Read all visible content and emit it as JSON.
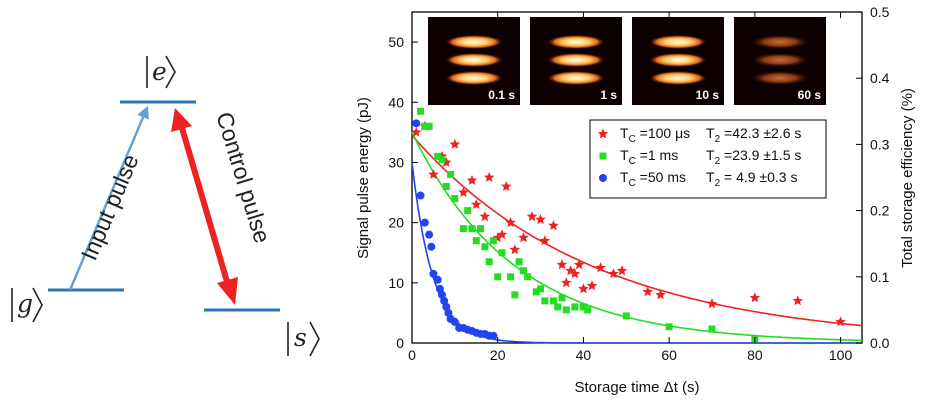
{
  "level_diagram": {
    "state_e": "e",
    "state_g": "g",
    "state_s": "s",
    "input_label": "Input pulse",
    "control_label": "Control pulse",
    "colors": {
      "level": "#2e75b6",
      "input": "#6a9fd0",
      "control": "#ee2222"
    }
  },
  "chart_data": {
    "type": "scatter",
    "xlabel": "Storage time Δt (s)",
    "ylabel": "Signal pulse energy (pJ)",
    "y2label": "Total storage efficiency (%)",
    "xlim": [
      0,
      105
    ],
    "ylim": [
      0,
      55
    ],
    "y2lim": [
      0,
      0.5
    ],
    "x_ticks": [
      "0",
      "20",
      "40",
      "60",
      "80",
      "100"
    ],
    "y_ticks": [
      "0",
      "10",
      "20",
      "30",
      "40",
      "50"
    ],
    "y2_ticks": [
      "0.0",
      "0.1",
      "0.2",
      "0.3",
      "0.4",
      "0.5"
    ],
    "grid": false,
    "legend_position": "right",
    "insets": [
      "0.1 s",
      "1 s",
      "10 s",
      "60 s"
    ],
    "series": [
      {
        "marker": "star",
        "color": "#ee2222",
        "legend_tc": "T",
        "legend_tc_sub": "C",
        "legend_tc_val": "=100 μs",
        "legend_t2": "T",
        "legend_t2_sub": "2",
        "legend_t2_val": "=42.3 ±2.6 s",
        "fit": {
          "amplitude": 34.5,
          "tau": 42.3
        },
        "points": [
          [
            1,
            35
          ],
          [
            3,
            36
          ],
          [
            5,
            28
          ],
          [
            7,
            31
          ],
          [
            8,
            30
          ],
          [
            10,
            33
          ],
          [
            12,
            25
          ],
          [
            14,
            27
          ],
          [
            15,
            23
          ],
          [
            17,
            21
          ],
          [
            18,
            27.5
          ],
          [
            20,
            17.5
          ],
          [
            21,
            18
          ],
          [
            22,
            26
          ],
          [
            23,
            20
          ],
          [
            24,
            15.5
          ],
          [
            26,
            17.5
          ],
          [
            28,
            21
          ],
          [
            30,
            20.5
          ],
          [
            31,
            17
          ],
          [
            33,
            19.5
          ],
          [
            35,
            13
          ],
          [
            36,
            10
          ],
          [
            37,
            12
          ],
          [
            38,
            11.5
          ],
          [
            39,
            13
          ],
          [
            40,
            9
          ],
          [
            42,
            9.5
          ],
          [
            44,
            12.5
          ],
          [
            47,
            11.5
          ],
          [
            49,
            12
          ],
          [
            55,
            8.5
          ],
          [
            58,
            8
          ],
          [
            70,
            6.5
          ],
          [
            80,
            7.5
          ],
          [
            90,
            7
          ],
          [
            100,
            3.5
          ]
        ]
      },
      {
        "marker": "square",
        "color": "#22dd22",
        "legend_tc": "T",
        "legend_tc_sub": "C",
        "legend_tc_val": "=1 ms",
        "legend_t2": "T",
        "legend_t2_sub": "2",
        "legend_t2_val": "=23.9 ±1.5 s",
        "fit": {
          "amplitude": 35,
          "tau": 23.9
        },
        "points": [
          [
            2,
            38.5
          ],
          [
            3,
            36
          ],
          [
            4,
            36
          ],
          [
            6,
            31
          ],
          [
            7,
            30.5
          ],
          [
            8,
            26
          ],
          [
            9,
            28
          ],
          [
            10,
            24
          ],
          [
            12,
            19
          ],
          [
            13,
            22
          ],
          [
            14,
            19
          ],
          [
            15,
            17
          ],
          [
            16,
            19
          ],
          [
            17,
            16
          ],
          [
            18,
            13.5
          ],
          [
            19,
            17
          ],
          [
            20,
            11
          ],
          [
            21,
            15
          ],
          [
            23,
            11
          ],
          [
            24,
            8
          ],
          [
            25,
            13.5
          ],
          [
            26,
            12
          ],
          [
            27,
            11
          ],
          [
            29,
            8.5
          ],
          [
            30,
            9
          ],
          [
            31,
            7
          ],
          [
            33,
            7
          ],
          [
            34,
            6
          ],
          [
            35,
            7.5
          ],
          [
            36,
            5.5
          ],
          [
            38,
            6
          ],
          [
            40,
            6
          ],
          [
            41,
            5.5
          ],
          [
            50,
            4.5
          ],
          [
            60,
            2.7
          ],
          [
            70,
            2.3
          ],
          [
            80,
            0.7
          ]
        ]
      },
      {
        "marker": "circle",
        "color": "#2244ee",
        "legend_tc": "T",
        "legend_tc_sub": "C",
        "legend_tc_val": "=50 ms",
        "legend_t2": "T",
        "legend_t2_sub": "2",
        "legend_t2_val": "=  4.9 ±0.3 s",
        "fit": {
          "amplitude": 30,
          "tau": 4.9
        },
        "points": [
          [
            1,
            36.5
          ],
          [
            2,
            24.5
          ],
          [
            3,
            20
          ],
          [
            4,
            18
          ],
          [
            4.5,
            16
          ],
          [
            5,
            11.5
          ],
          [
            6,
            10.5
          ],
          [
            6.5,
            9
          ],
          [
            7,
            8
          ],
          [
            7.5,
            7
          ],
          [
            8,
            6
          ],
          [
            8.5,
            5
          ],
          [
            9,
            4
          ],
          [
            10,
            3.5
          ],
          [
            11,
            2.5
          ],
          [
            12,
            2.5
          ],
          [
            13,
            2.2
          ],
          [
            14,
            2
          ],
          [
            15,
            1.7
          ],
          [
            16,
            1.5
          ],
          [
            17,
            1.5
          ],
          [
            18,
            1.2
          ],
          [
            19,
            1.2
          ]
        ]
      }
    ]
  }
}
